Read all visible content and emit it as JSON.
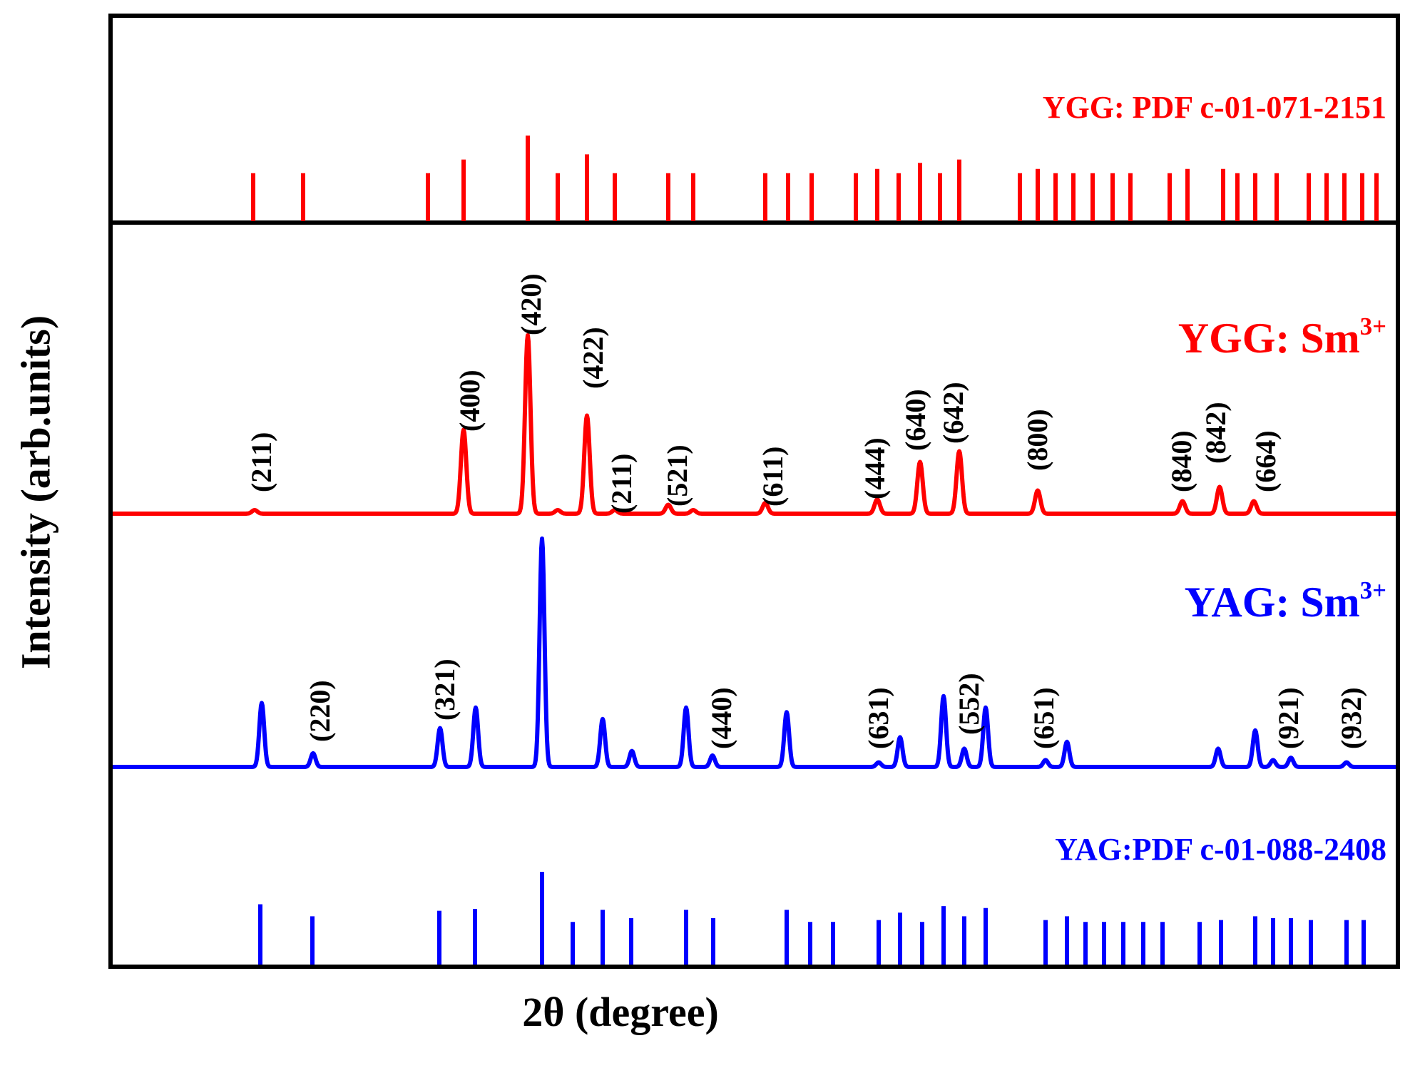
{
  "chart_data": {
    "type": "line",
    "xlabel": "2θ (degree)",
    "ylabel": "Intensity (arb.units)",
    "x_tick_labels_shown": false,
    "y_tick_labels_shown": false,
    "panels": [
      {
        "label": "YGG: PDF c-01-071-2151",
        "type": "stick",
        "color": "#ff0000",
        "sticks": [
          {
            "x": 1,
            "h": 0.56
          },
          {
            "x": 2,
            "h": 0.56
          },
          {
            "x": 3,
            "h": 0.56
          },
          {
            "x": 4,
            "h": 0.72
          },
          {
            "x": 5,
            "h": 1.0
          },
          {
            "x": 6,
            "h": 0.56
          },
          {
            "x": 7,
            "h": 0.78
          },
          {
            "x": 8,
            "h": 0.56
          },
          {
            "x": 9,
            "h": 0.56
          },
          {
            "x": 10,
            "h": 0.56
          },
          {
            "x": 11,
            "h": 0.56
          },
          {
            "x": 12,
            "h": 0.56
          },
          {
            "x": 13,
            "h": 0.56
          },
          {
            "x": 14,
            "h": 0.56
          },
          {
            "x": 15,
            "h": 0.61
          },
          {
            "x": 16,
            "h": 0.56
          },
          {
            "x": 17,
            "h": 0.68
          },
          {
            "x": 18,
            "h": 0.56
          },
          {
            "x": 19,
            "h": 0.72
          },
          {
            "x": 20,
            "h": 0.56
          },
          {
            "x": 21,
            "h": 0.61
          },
          {
            "x": 22,
            "h": 0.56
          },
          {
            "x": 23,
            "h": 0.56
          },
          {
            "x": 24,
            "h": 0.56
          },
          {
            "x": 25,
            "h": 0.56
          },
          {
            "x": 26,
            "h": 0.56
          },
          {
            "x": 27,
            "h": 0.56
          },
          {
            "x": 28,
            "h": 0.61
          },
          {
            "x": 29,
            "h": 0.61
          },
          {
            "x": 30,
            "h": 0.56
          },
          {
            "x": 31,
            "h": 0.56
          },
          {
            "x": 32,
            "h": 0.56
          },
          {
            "x": 33,
            "h": 0.56
          },
          {
            "x": 34,
            "h": 0.56
          },
          {
            "x": 35,
            "h": 0.56
          },
          {
            "x": 36,
            "h": 0.56
          },
          {
            "x": 37,
            "h": 0.56
          }
        ]
      },
      {
        "label": "YGG: Sm3+",
        "label_main": "YGG: Sm",
        "label_sup": "3+",
        "type": "line",
        "color": "#ff0000",
        "peaks": [
          {
            "x": 1,
            "h": 0.02,
            "hkl": "(211)"
          },
          {
            "x": 4,
            "h": 0.47,
            "hkl": "(400)"
          },
          {
            "x": 5,
            "h": 1.0,
            "hkl": "(420)"
          },
          {
            "x": 6,
            "h": 0.02
          },
          {
            "x": 7,
            "h": 0.55,
            "hkl": "(422)"
          },
          {
            "x": 8,
            "h": 0.02,
            "hkl": "(211)"
          },
          {
            "x": 9,
            "h": 0.05,
            "hkl": "(521)"
          },
          {
            "x": 10,
            "h": 0.02
          },
          {
            "x": 11,
            "h": 0.06,
            "hkl": "(611)"
          },
          {
            "x": 15,
            "h": 0.08,
            "hkl": "(444)"
          },
          {
            "x": 17,
            "h": 0.29,
            "hkl": "(640)"
          },
          {
            "x": 19,
            "h": 0.35,
            "hkl": "(642)"
          },
          {
            "x": 21,
            "h": 0.13,
            "hkl": "(800)"
          },
          {
            "x": 28,
            "h": 0.07,
            "hkl": "(840)"
          },
          {
            "x": 29,
            "h": 0.15,
            "hkl": "(842)"
          },
          {
            "x": 31,
            "h": 0.07,
            "hkl": "(664)"
          }
        ]
      },
      {
        "label": "YAG: Sm3+",
        "label_main": "YAG: Sm",
        "label_sup": "3+",
        "type": "line",
        "color": "#0000ff",
        "peaks": [
          {
            "x": 1.5,
            "h": 0.28
          },
          {
            "x": 2.5,
            "h": 0.06,
            "hkl": "(220)"
          },
          {
            "x": 4.5,
            "h": 0.17,
            "hkl": "(321)"
          },
          {
            "x": 5.2,
            "h": 0.26
          },
          {
            "x": 6.5,
            "h": 1.0
          },
          {
            "x": 7.7,
            "h": 0.21
          },
          {
            "x": 8.3,
            "h": 0.07
          },
          {
            "x": 9.3,
            "h": 0.26
          },
          {
            "x": 9.9,
            "h": 0.05,
            "hkl": "(440)"
          },
          {
            "x": 11.3,
            "h": 0.24
          },
          {
            "x": 14.6,
            "h": 0.02,
            "hkl": "(631)"
          },
          {
            "x": 15.0,
            "h": 0.13
          },
          {
            "x": 15.9,
            "h": 0.31
          },
          {
            "x": 16.3,
            "h": 0.08,
            "hkl": "(552)"
          },
          {
            "x": 16.7,
            "h": 0.26
          },
          {
            "x": 17.8,
            "h": 0.03,
            "hkl": "(651)"
          },
          {
            "x": 18.2,
            "h": 0.11
          },
          {
            "x": 21.9,
            "h": 0.08
          },
          {
            "x": 22.6,
            "h": 0.16
          },
          {
            "x": 22.9,
            "h": 0.03,
            "hkl": "(921)"
          },
          {
            "x": 23.3,
            "h": 0.04
          },
          {
            "x": 24.3,
            "h": 0.02,
            "hkl": "(932)"
          }
        ]
      },
      {
        "label": "YAG:PDF c-01-088-2408",
        "type": "stick",
        "color": "#0000ff",
        "sticks": [
          {
            "x": 1,
            "h": 0.65
          },
          {
            "x": 2,
            "h": 0.52
          },
          {
            "x": 3,
            "h": 0.58
          },
          {
            "x": 4,
            "h": 0.6
          },
          {
            "x": 5,
            "h": 1.0
          },
          {
            "x": 6,
            "h": 0.46
          },
          {
            "x": 7,
            "h": 0.59
          },
          {
            "x": 8,
            "h": 0.5
          },
          {
            "x": 9,
            "h": 0.59
          },
          {
            "x": 10,
            "h": 0.5
          },
          {
            "x": 11,
            "h": 0.59
          },
          {
            "x": 12,
            "h": 0.46
          },
          {
            "x": 13,
            "h": 0.46
          },
          {
            "x": 14,
            "h": 0.48
          },
          {
            "x": 15,
            "h": 0.56
          },
          {
            "x": 16,
            "h": 0.46
          },
          {
            "x": 17,
            "h": 0.63
          },
          {
            "x": 18,
            "h": 0.52
          },
          {
            "x": 19,
            "h": 0.61
          },
          {
            "x": 20,
            "h": 0.48
          },
          {
            "x": 21,
            "h": 0.52
          },
          {
            "x": 22,
            "h": 0.46
          },
          {
            "x": 23,
            "h": 0.46
          },
          {
            "x": 24,
            "h": 0.46
          },
          {
            "x": 25,
            "h": 0.46
          },
          {
            "x": 26,
            "h": 0.46
          },
          {
            "x": 27,
            "h": 0.46
          },
          {
            "x": 28,
            "h": 0.48
          },
          {
            "x": 29,
            "h": 0.52
          },
          {
            "x": 30,
            "h": 0.5
          },
          {
            "x": 31,
            "h": 0.5
          },
          {
            "x": 32,
            "h": 0.48
          },
          {
            "x": 33,
            "h": 0.48
          },
          {
            "x": 34,
            "h": 0.48
          }
        ]
      }
    ]
  }
}
